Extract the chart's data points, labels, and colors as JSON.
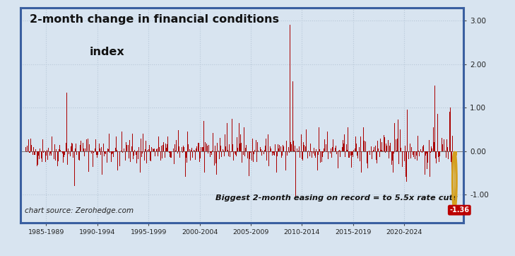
{
  "title_line1": "2-month change in financial conditions",
  "title_line2": "index",
  "xlabel_note": "chart source: Zerohedge.com",
  "annotation_text": "Biggest 2-month easing on record = to 5.5x rate cuts",
  "label_value": "-1.36",
  "background_color": "#d8e4f0",
  "border_color": "#3a5fa0",
  "bar_color": "#aa0000",
  "highlight_bar_color": "#d4a020",
  "grid_color": "#b8c8d8",
  "yticks": [
    -1.0,
    0.0,
    1.0,
    2.0,
    3.0
  ],
  "xlim": [
    1982.5,
    2025.8
  ],
  "ylim": [
    -1.65,
    3.3
  ],
  "xtick_labels": [
    "1985-1989",
    "1990-1994",
    "1995-1999",
    "2000-2004",
    "2005-2009",
    "2010-2014",
    "2015-2019",
    "2020-2024"
  ],
  "xtick_positions": [
    1985,
    1990,
    1995,
    2000,
    2005,
    2010,
    2015,
    2020
  ],
  "seed": 42
}
